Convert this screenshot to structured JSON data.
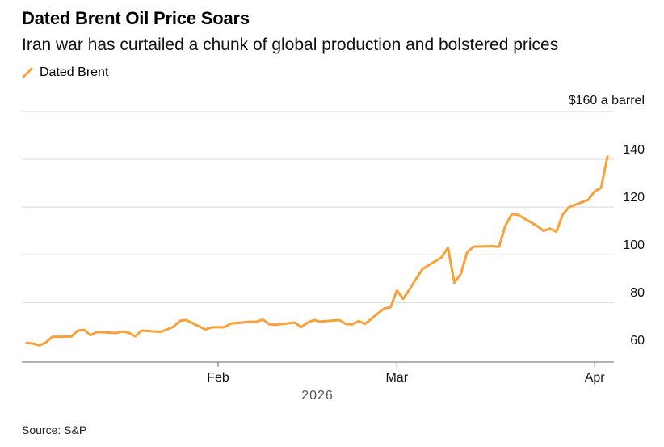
{
  "header": {
    "title": "Dated Brent Oil Price Soars",
    "subtitle": "Iran war has curtailed a chunk of global production and bolstered prices"
  },
  "footer": {
    "source": "Source: S&P"
  },
  "colors": {
    "series": "#f9a13a",
    "grid": "#d9d9d9",
    "axis": "#666666"
  },
  "chart_data": {
    "type": "line",
    "title": "Dated Brent Oil Price Soars",
    "subtitle": "Iran war has curtailed a chunk of global production and bolstered prices",
    "unit_label": "$160 a barrel",
    "year_label": "2026",
    "ylim": [
      55,
      160
    ],
    "yticks": [
      60,
      80,
      100,
      120,
      140
    ],
    "xlim": [
      "2026-01-02",
      "2026-04-03"
    ],
    "xticks": [
      {
        "date": "2026-02-01",
        "label": "Feb"
      },
      {
        "date": "2026-03-01",
        "label": "Mar"
      },
      {
        "date": "2026-04-01",
        "label": "Apr"
      }
    ],
    "grid": true,
    "legend_position": "top-left",
    "series": [
      {
        "name": "Dated Brent",
        "points": [
          [
            "2026-01-02",
            63.0
          ],
          [
            "2026-01-03",
            62.8
          ],
          [
            "2026-01-04",
            62.0
          ],
          [
            "2026-01-05",
            63.2
          ],
          [
            "2026-01-06",
            65.6
          ],
          [
            "2026-01-09",
            65.7
          ],
          [
            "2026-01-10",
            68.2
          ],
          [
            "2026-01-11",
            68.5
          ],
          [
            "2026-01-12",
            66.3
          ],
          [
            "2026-01-13",
            67.6
          ],
          [
            "2026-01-16",
            67.2
          ],
          [
            "2026-01-17",
            67.8
          ],
          [
            "2026-01-18",
            67.3
          ],
          [
            "2026-01-19",
            65.8
          ],
          [
            "2026-01-20",
            68.2
          ],
          [
            "2026-01-23",
            67.7
          ],
          [
            "2026-01-24",
            68.7
          ],
          [
            "2026-01-25",
            69.8
          ],
          [
            "2026-01-26",
            72.3
          ],
          [
            "2026-01-27",
            72.6
          ],
          [
            "2026-01-30",
            68.7
          ],
          [
            "2026-01-31",
            69.6
          ],
          [
            "2026-02-02",
            69.6
          ],
          [
            "2026-02-03",
            71.2
          ],
          [
            "2026-02-06",
            71.9
          ],
          [
            "2026-02-07",
            71.9
          ],
          [
            "2026-02-08",
            72.8
          ],
          [
            "2026-02-09",
            70.9
          ],
          [
            "2026-02-10",
            70.6
          ],
          [
            "2026-02-13",
            71.6
          ],
          [
            "2026-02-14",
            69.7
          ],
          [
            "2026-02-15",
            71.5
          ],
          [
            "2026-02-16",
            72.6
          ],
          [
            "2026-02-17",
            72.0
          ],
          [
            "2026-02-20",
            72.6
          ],
          [
            "2026-02-21",
            71.0
          ],
          [
            "2026-02-22",
            70.8
          ],
          [
            "2026-02-23",
            72.2
          ],
          [
            "2026-02-24",
            71.0
          ],
          [
            "2026-02-27",
            77.5
          ],
          [
            "2026-02-28",
            78.0
          ],
          [
            "2026-03-01",
            85.0
          ],
          [
            "2026-03-02",
            81.5
          ],
          [
            "2026-03-05",
            94.0
          ],
          [
            "2026-03-08",
            98.9
          ],
          [
            "2026-03-09",
            103.0
          ],
          [
            "2026-03-10",
            88.3
          ],
          [
            "2026-03-11",
            91.9
          ],
          [
            "2026-03-12",
            101.0
          ],
          [
            "2026-03-13",
            103.4
          ],
          [
            "2026-03-16",
            103.6
          ],
          [
            "2026-03-17",
            103.3
          ],
          [
            "2026-03-18",
            112.2
          ],
          [
            "2026-03-19",
            117.0
          ],
          [
            "2026-03-20",
            116.7
          ],
          [
            "2026-03-23",
            112.0
          ],
          [
            "2026-03-24",
            110.0
          ],
          [
            "2026-03-25",
            111.0
          ],
          [
            "2026-03-26",
            109.6
          ],
          [
            "2026-03-27",
            117.0
          ],
          [
            "2026-03-28",
            120.0
          ],
          [
            "2026-03-31",
            123.0
          ],
          [
            "2026-04-01",
            126.6
          ],
          [
            "2026-04-02",
            128.0
          ],
          [
            "2026-04-03",
            141.2
          ]
        ]
      }
    ]
  }
}
